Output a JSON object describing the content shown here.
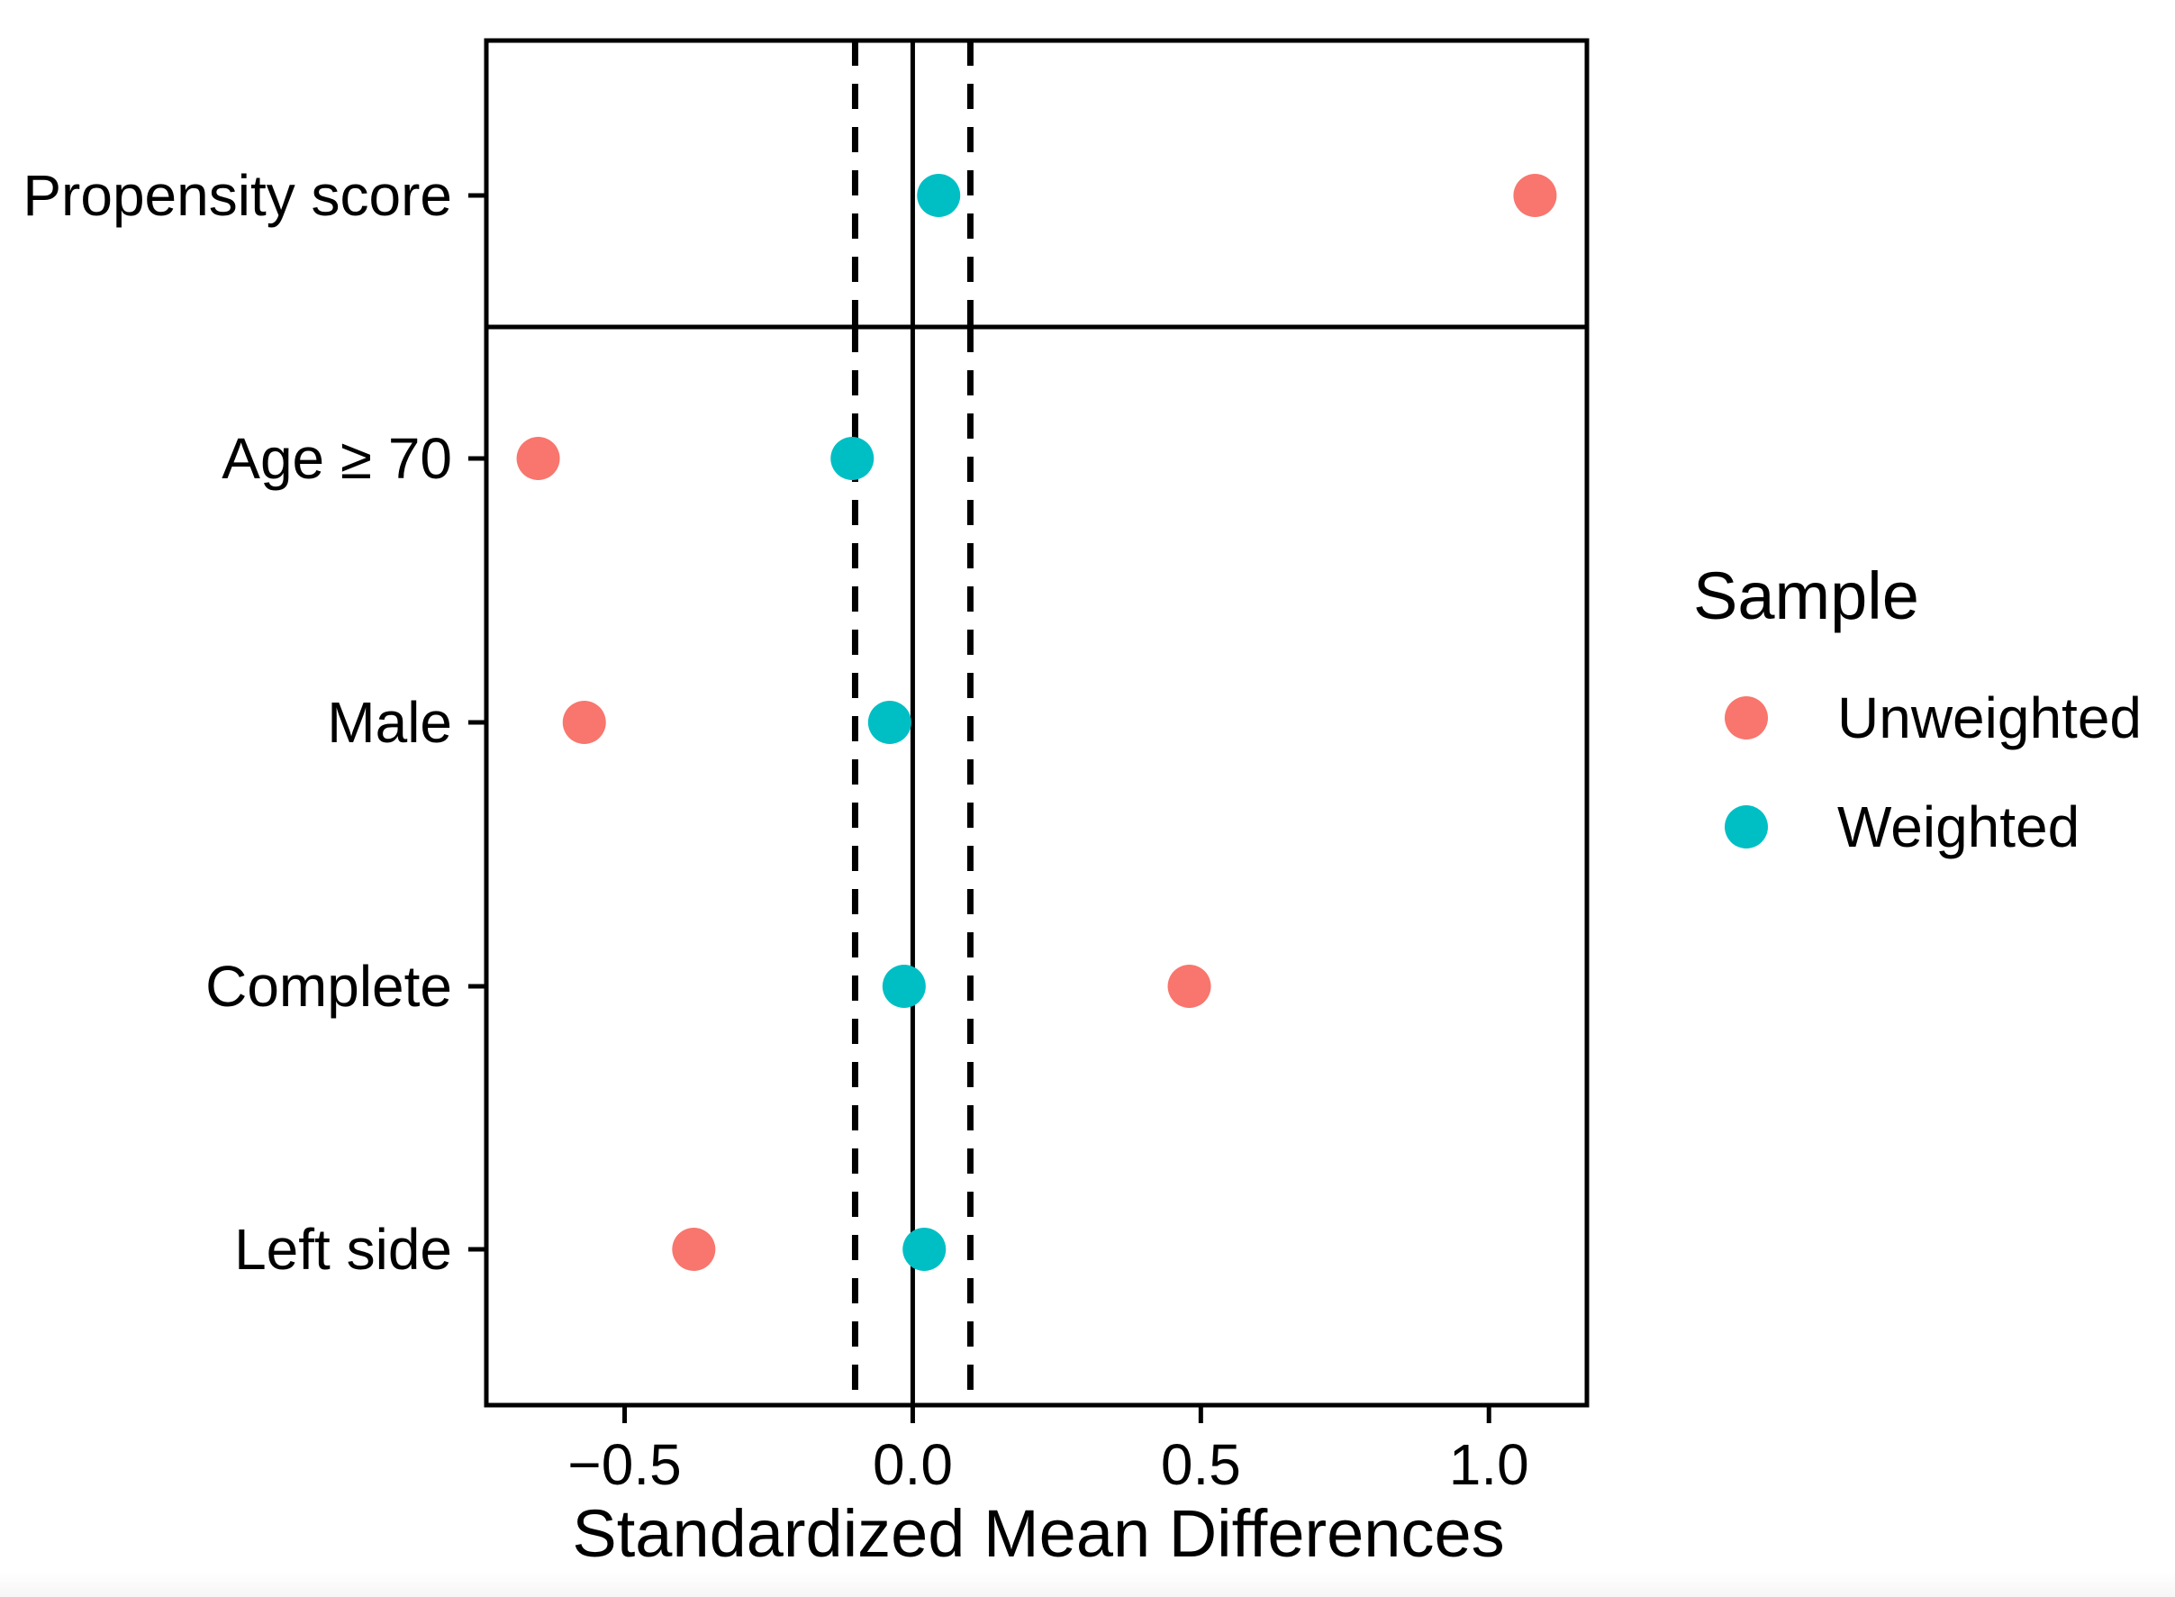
{
  "chart_data": {
    "type": "scatter",
    "title": "",
    "xlabel": "Standardized Mean Differences",
    "ylabel": "",
    "xlim": [
      -0.74,
      1.17
    ],
    "x_ticks": [
      -0.5,
      0.0,
      0.5,
      1.0
    ],
    "x_tick_labels": [
      "−0.5",
      "0.0",
      "0.5",
      "1.0"
    ],
    "reference_lines": {
      "solid": 0.0,
      "dashed": [
        -0.1,
        0.1
      ]
    },
    "panels": [
      {
        "variables": [
          "Propensity score"
        ]
      },
      {
        "variables": [
          "Age ≥ 70",
          "Male",
          "Complete",
          "Left side"
        ]
      }
    ],
    "categories": [
      "Propensity score",
      "Age ≥ 70",
      "Male",
      "Complete",
      "Left side"
    ],
    "series": [
      {
        "name": "Unweighted",
        "color": "#F8766D",
        "values": [
          1.08,
          -0.65,
          -0.57,
          0.48,
          -0.38
        ]
      },
      {
        "name": "Weighted",
        "color": "#00BFC4",
        "values": [
          0.045,
          -0.105,
          -0.04,
          -0.015,
          0.02
        ]
      }
    ],
    "legend": {
      "title": "Sample",
      "position": "right",
      "entries": [
        "Unweighted",
        "Weighted"
      ]
    },
    "grid": false
  }
}
